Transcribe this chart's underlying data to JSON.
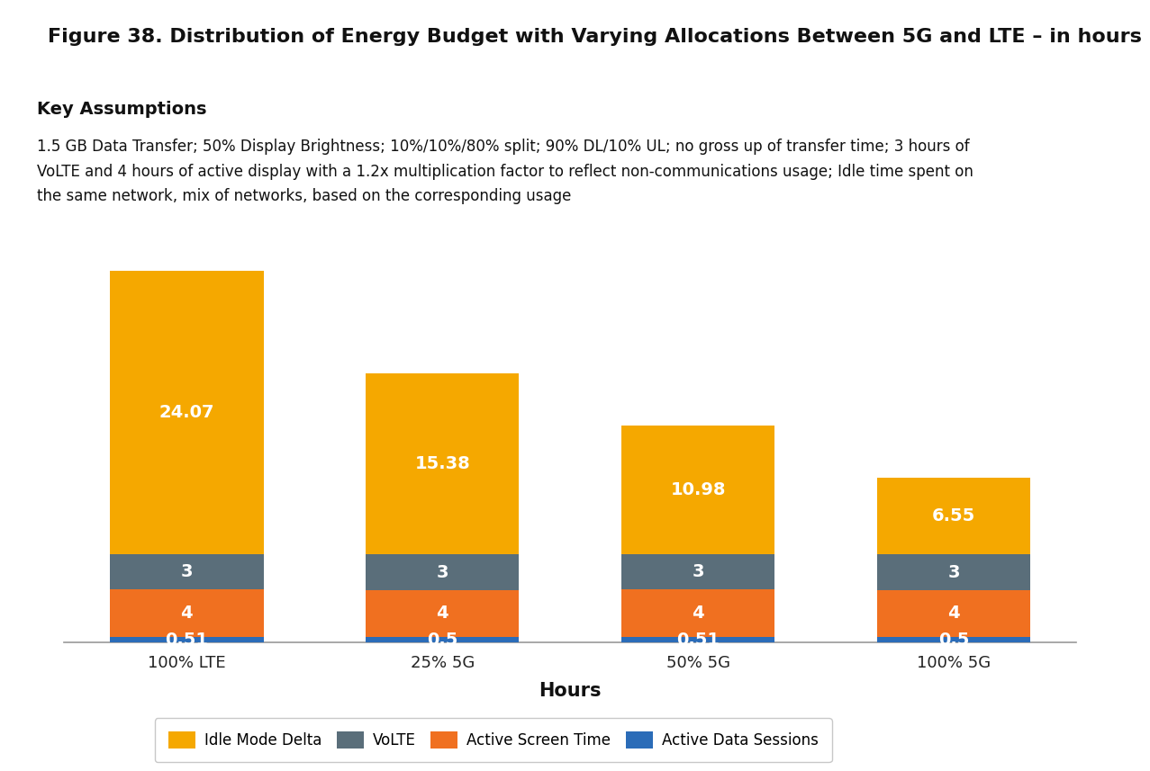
{
  "title": "Figure 38. Distribution of Energy Budget with Varying Allocations Between 5G and LTE – in hours",
  "key_assumptions_title": "Key Assumptions",
  "key_assumptions_text": "1.5 GB Data Transfer; 50% Display Brightness; 10%/10%/80% split; 90% DL/10% UL; no gross up of transfer time; 3 hours of\nVoLTE and 4 hours of active display with a 1.2x multiplication factor to reflect non-communications usage; Idle time spent on\nthe same network, mix of networks, based on the corresponding usage",
  "categories": [
    "100% LTE",
    "25% 5G",
    "50% 5G",
    "100% 5G"
  ],
  "xlabel": "Hours",
  "segments": [
    {
      "label": "Active Data Sessions",
      "color": "#2b6cb8",
      "values": [
        0.51,
        0.5,
        0.51,
        0.5
      ]
    },
    {
      "label": "Active Screen Time",
      "color": "#f07020",
      "values": [
        4,
        4,
        4,
        4
      ]
    },
    {
      "label": "VoLTE",
      "color": "#5a6e7a",
      "values": [
        3,
        3,
        3,
        3
      ]
    },
    {
      "label": "Idle Mode Delta",
      "color": "#f5a800",
      "values": [
        24.07,
        15.38,
        10.98,
        6.55
      ]
    }
  ],
  "legend_order": [
    "Idle Mode Delta",
    "VoLTE",
    "Active Screen Time",
    "Active Data Sessions"
  ],
  "bar_width": 0.6,
  "label_fontsize": 14,
  "title_fontsize": 16,
  "axis_label_fontsize": 15,
  "tick_fontsize": 13,
  "legend_fontsize": 12,
  "background_color": "#ffffff",
  "plot_bg_color": "#ffffff",
  "assumption_bg_color": "#dedede",
  "title_separator_color": "#c8a060",
  "ylim": [
    0,
    32
  ]
}
